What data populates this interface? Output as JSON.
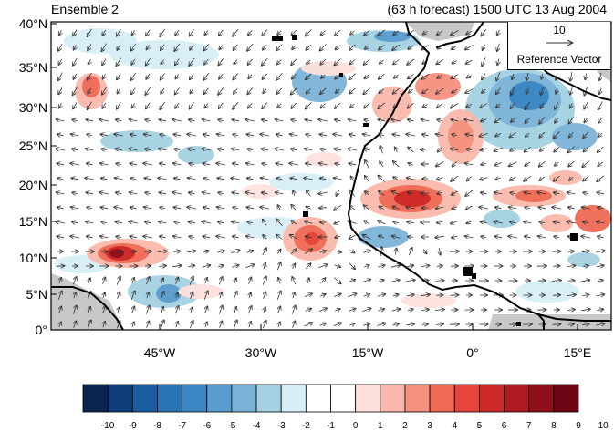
{
  "titles": {
    "left": "Ensemble 2",
    "right": "(63 h forecast) 1500 UTC 13 Aug 2004"
  },
  "map": {
    "lat_labels": [
      "40°N",
      "35°N",
      "30°N",
      "25°N",
      "20°N",
      "15°N",
      "10°N",
      "5°N",
      "0°"
    ],
    "lon_labels": [
      "45°W",
      "30°W",
      "15°W",
      "0°",
      "15°E"
    ],
    "lon_range_deg": [
      -60,
      20
    ],
    "lat_range_deg": [
      0,
      40
    ],
    "land_fill_color": "#c8c8c8",
    "coast_color": "#000000"
  },
  "reference_vector": {
    "magnitude": "10",
    "label": "Reference Vector"
  },
  "colorbar": {
    "labels": [
      "-10",
      "-9",
      "-8",
      "-7",
      "-6",
      "-5",
      "-4",
      "-3",
      "-2",
      "-1",
      "0",
      "1",
      "2",
      "3",
      "4",
      "5",
      "6",
      "7",
      "8",
      "9",
      "10"
    ],
    "colors": [
      "#08244f",
      "#0e3f7c",
      "#1a5c9e",
      "#2a74b4",
      "#3b86c2",
      "#5a9ccf",
      "#7bb3d8",
      "#a3d1e1",
      "#d6eef6",
      "#ffffff",
      "#ffffff",
      "#fde0dc",
      "#f9b8ab",
      "#f4907d",
      "#ee6a55",
      "#e5453a",
      "#cc2827",
      "#b01a21",
      "#8f0f1b",
      "#6e0515"
    ]
  }
}
